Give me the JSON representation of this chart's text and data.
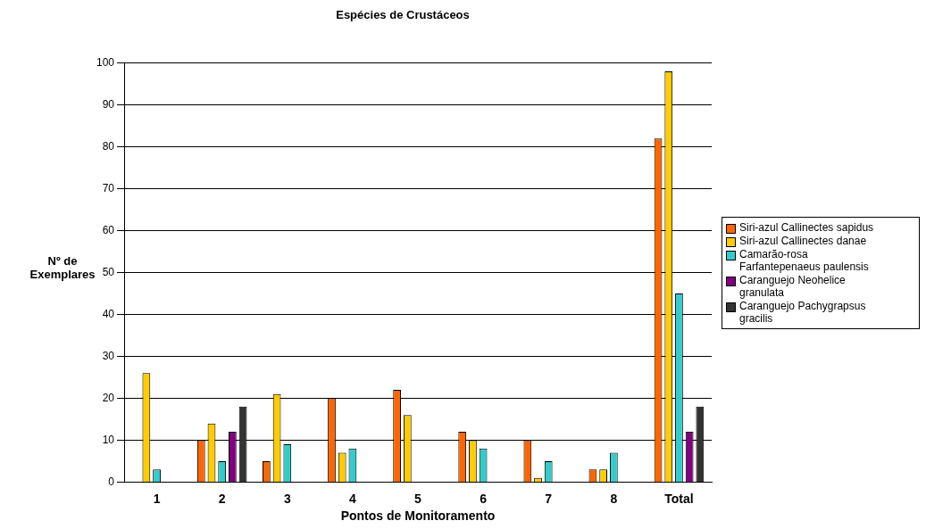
{
  "chart_data": {
    "type": "bar",
    "title": "Espécies de Crustáceos",
    "xlabel": "Pontos de Monitoramento",
    "ylabel": "Nº de Exemplares",
    "categories": [
      "1",
      "2",
      "3",
      "4",
      "5",
      "6",
      "7",
      "8",
      "Total"
    ],
    "series": [
      {
        "name": "Siri-azul Callinectes sapidus",
        "color": "#ff6600",
        "values": [
          0,
          10,
          5,
          20,
          22,
          12,
          10,
          3,
          82
        ]
      },
      {
        "name": "Siri-azul Callinectes danae",
        "color": "#ffcc00",
        "values": [
          26,
          14,
          21,
          7,
          16,
          10,
          1,
          3,
          98
        ]
      },
      {
        "name": "Camarão-rosa Farfantepenaeus paulensis",
        "color": "#33cccc",
        "values": [
          3,
          5,
          9,
          8,
          0,
          8,
          5,
          7,
          45
        ]
      },
      {
        "name": "Caranguejo Neohelice granulata",
        "color": "#800080",
        "values": [
          0,
          12,
          0,
          0,
          0,
          0,
          0,
          0,
          12
        ]
      },
      {
        "name": "Caranguejo Pachygrapsus gracilis",
        "color": "#333333",
        "values": [
          0,
          18,
          0,
          0,
          0,
          0,
          0,
          0,
          18
        ]
      }
    ],
    "ylim": [
      0,
      100
    ],
    "yticks": [
      0,
      10,
      20,
      30,
      40,
      50,
      60,
      70,
      80,
      90,
      100
    ],
    "grid": "y",
    "legend": "right"
  }
}
